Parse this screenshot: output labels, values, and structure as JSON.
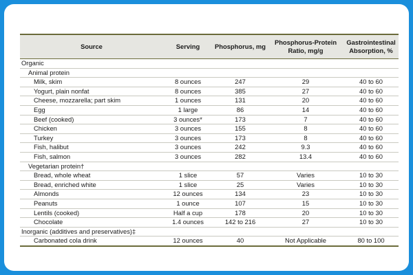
{
  "columns": [
    "Source",
    "Serving",
    "Phosphorus, mg",
    "Phosphorus-Protein Ratio, mg/g",
    "Gastrointestinal Absorption, %"
  ],
  "sections": [
    {
      "label": "Organic",
      "subsections": [
        {
          "label": "Animal protein",
          "rows": [
            [
              "Milk, skim",
              "8 ounces",
              "247",
              "29",
              "40 to 60"
            ],
            [
              "Yogurt, plain nonfat",
              "8 ounces",
              "385",
              "27",
              "40 to 60"
            ],
            [
              "Cheese, mozzarella; part skim",
              "1 ounces",
              "131",
              "20",
              "40 to 60"
            ],
            [
              "Egg",
              "1 large",
              "86",
              "14",
              "40 to 60"
            ],
            [
              "Beef (cooked)",
              "3 ounces*",
              "173",
              "7",
              "40 to 60"
            ],
            [
              "Chicken",
              "3 ounces",
              "155",
              "8",
              "40 to 60"
            ],
            [
              "Turkey",
              "3 ounces",
              "173",
              "8",
              "40 to 60"
            ],
            [
              "Fish, halibut",
              "3 ounces",
              "242",
              "9.3",
              "40 to 60"
            ],
            [
              "Fish, salmon",
              "3 ounces",
              "282",
              "13.4",
              "40 to 60"
            ]
          ]
        },
        {
          "label": "Vegetarian protein†",
          "rows": [
            [
              "Bread, whole wheat",
              "1 slice",
              "57",
              "Varies",
              "10 to 30"
            ],
            [
              "Bread, enriched white",
              "1 slice",
              "25",
              "Varies",
              "10 to 30"
            ],
            [
              "Almonds",
              "12 ounces",
              "134",
              "23",
              "10 to 30"
            ],
            [
              "Peanuts",
              "1 ounce",
              "107",
              "15",
              "10 to 30"
            ],
            [
              "Lentils (cooked)",
              "Half a cup",
              "178",
              "20",
              "10 to 30"
            ],
            [
              "Chocolate",
              "1.4 ounces",
              "142 to 216",
              "27",
              "10 to 30"
            ]
          ]
        }
      ]
    },
    {
      "label": "Inorganic (additives and preservatives)‡",
      "subsections": [
        {
          "label": "",
          "rows": [
            [
              "Carbonated cola drink",
              "12 ounces",
              "40",
              "Not Applicable",
              "80 to 100"
            ]
          ]
        }
      ]
    }
  ]
}
